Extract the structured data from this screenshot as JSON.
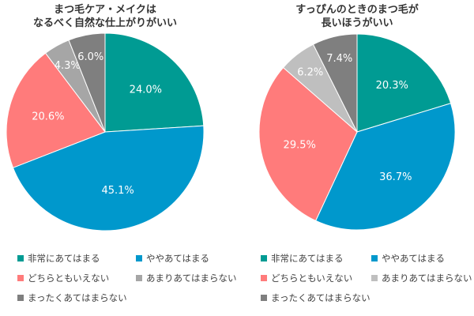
{
  "chart_data": [
    {
      "type": "pie",
      "title": "まつ毛ケア・メイクは\nなるべく自然な仕上がりがいい",
      "categories": [
        "非常にあてはまる",
        "ややあてはまる",
        "どちらともいえない",
        "あまりあてはまらない",
        "まったくあてはまらない"
      ],
      "values": [
        24.0,
        45.1,
        20.6,
        4.3,
        6.0
      ],
      "labels": [
        "24.0%",
        "45.1%",
        "20.6%",
        "4.3%",
        "6.0%"
      ],
      "colors": [
        "#009b93",
        "#0098cc",
        "#ff7b7b",
        "#a6a6a6",
        "#7f7f7f"
      ],
      "legend": "bottom"
    },
    {
      "type": "pie",
      "title": "すっぴんのときのまつ毛が\n長いほうがいい",
      "categories": [
        "非常にあてはまる",
        "ややあてはまる",
        "どちらともいえない",
        "あまりあてはまらない",
        "まったくあてはまらない"
      ],
      "values": [
        20.3,
        36.7,
        29.5,
        6.2,
        7.4
      ],
      "labels": [
        "20.3%",
        "36.7%",
        "29.5%",
        "6.2%",
        "7.4%"
      ],
      "colors": [
        "#009b93",
        "#0098cc",
        "#ff7b7b",
        "#bfbfbf",
        "#7f7f7f"
      ],
      "legend": "bottom"
    }
  ]
}
